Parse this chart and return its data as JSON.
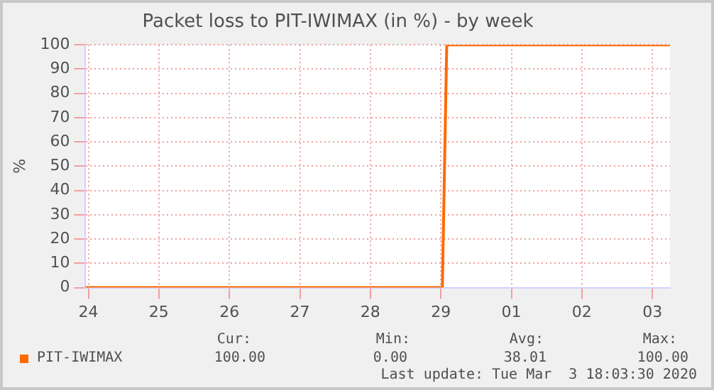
{
  "chart_data": {
    "type": "line",
    "title": "Packet loss to PIT-IWIMAX (in %) - by week",
    "ylabel": "%",
    "x": [
      "2020-02-24T11:00",
      "2020-02-29T12:30",
      "2020-02-29T14:00",
      "2020-03-03T18:00"
    ],
    "series": [
      {
        "name": "PIT-IWIMAX",
        "color": "#ff6a00",
        "values": [
          0,
          0,
          100,
          100
        ]
      }
    ],
    "xlim": [
      "2020-02-24T11:00",
      "2020-03-03T18:00"
    ],
    "xticks": [
      {
        "value": "2020-02-24T12:00",
        "label": "24"
      },
      {
        "value": "2020-02-25T12:00",
        "label": "25"
      },
      {
        "value": "2020-02-26T12:00",
        "label": "26"
      },
      {
        "value": "2020-02-27T12:00",
        "label": "27"
      },
      {
        "value": "2020-02-28T12:00",
        "label": "28"
      },
      {
        "value": "2020-02-29T12:00",
        "label": "29"
      },
      {
        "value": "2020-03-01T12:00",
        "label": "01"
      },
      {
        "value": "2020-03-02T12:00",
        "label": "02"
      },
      {
        "value": "2020-03-03T12:00",
        "label": "03"
      }
    ],
    "ylim": [
      0,
      100
    ],
    "yticks": [
      0,
      10,
      20,
      30,
      40,
      50,
      60,
      70,
      80,
      90,
      100
    ],
    "grid": true,
    "legend": "bottom left",
    "marker": "none",
    "line_style": "solid",
    "annotations": [
      "Cur:",
      "Min:",
      "Avg:",
      "Max:",
      "100.00",
      "0.00",
      "38.01",
      "100.00",
      "Last update: Tue Mar  3 18:03:30 2020"
    ]
  }
}
